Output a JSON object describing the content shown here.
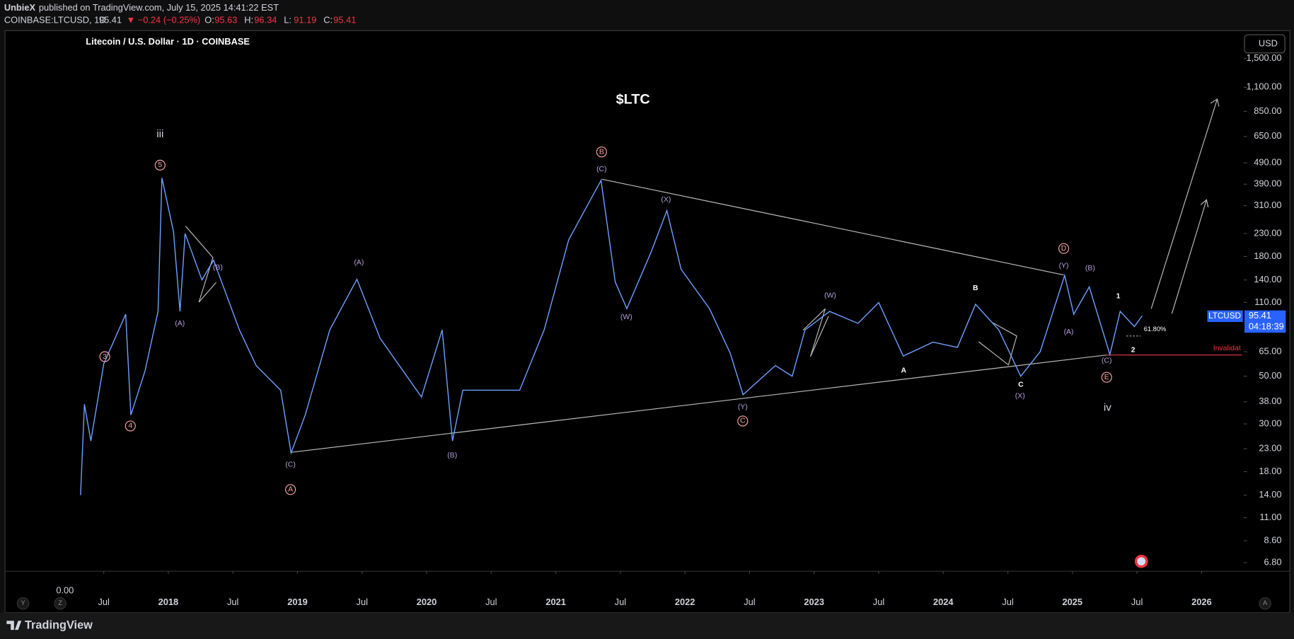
{
  "header": {
    "author": "UnbieX",
    "published": "published on TradingView.com, July 15, 2025 14:41:22 EST",
    "symbol": "COINBASE:LTCUSD, 1D",
    "last": "95.41",
    "change": "▼ −0.24 (−0.25%)",
    "ohlc": [
      {
        "label": "O:",
        "value": "95.63"
      },
      {
        "label": "H:",
        "value": "96.34"
      },
      {
        "label": "L:",
        "value": "91.19"
      },
      {
        "label": "C:",
        "value": "95.41"
      }
    ]
  },
  "chart_data": {
    "type": "line",
    "title": "Litecoin / U.S. Dollar · 1D · COINBASE",
    "annotation": "$LTC",
    "color": "#6ea0ff",
    "log_scale": true,
    "grid": false,
    "x": [
      2017.32,
      2017.35,
      2017.4,
      2017.5,
      2017.67,
      2017.71,
      2017.82,
      2017.92,
      2017.95,
      2018.04,
      2018.09,
      2018.13,
      2018.26,
      2018.35,
      2018.55,
      2018.68,
      2018.87,
      2018.95,
      2019.06,
      2019.25,
      2019.46,
      2019.64,
      2019.96,
      2020.12,
      2020.2,
      2020.28,
      2020.53,
      2020.72,
      2020.91,
      2021.1,
      2021.35,
      2021.46,
      2021.55,
      2021.74,
      2021.86,
      2021.97,
      2022.19,
      2022.35,
      2022.45,
      2022.7,
      2022.83,
      2022.93,
      2023.12,
      2023.34,
      2023.5,
      2023.69,
      2023.92,
      2024.11,
      2024.25,
      2024.43,
      2024.6,
      2024.75,
      2024.94,
      2025.01,
      2025.13,
      2025.29,
      2025.37,
      2025.48,
      2025.54
    ],
    "values": [
      14,
      37,
      25,
      57,
      97,
      33,
      53,
      100,
      417,
      235,
      100,
      230,
      140,
      173,
      82,
      56,
      43,
      22,
      33,
      82,
      141,
      75,
      40,
      82,
      25,
      43,
      43,
      43,
      82,
      215,
      406,
      137,
      103,
      190,
      294,
      157,
      103,
      64,
      41,
      56,
      50,
      82,
      100,
      88,
      110,
      62,
      72,
      68,
      108,
      82,
      50,
      65,
      147,
      97,
      130,
      63,
      100,
      85,
      95.41
    ],
    "xlim": [
      2016.735,
      2026.313
    ],
    "xticks": [
      {
        "value": 2017.5,
        "label": "Jul"
      },
      2018,
      {
        "value": 2018.5,
        "label": "Jul"
      },
      2019,
      {
        "value": 2019.5,
        "label": "Jul"
      },
      2020,
      {
        "value": 2020.5,
        "label": "Jul"
      },
      2021,
      {
        "value": 2021.5,
        "label": "Jul"
      },
      2022,
      {
        "value": 2022.5,
        "label": "Jul"
      },
      2023,
      {
        "value": 2023.5,
        "label": "Jul"
      },
      2024,
      {
        "value": 2024.5,
        "label": "Jul"
      },
      2025,
      {
        "value": 2025.5,
        "label": "Jul"
      },
      2026
    ],
    "ylim": [
      6.2,
      2000
    ],
    "yticks": [
      {
        "value": 1500,
        "label": "1,500.00"
      },
      {
        "value": 1100,
        "label": "1,100.00"
      },
      {
        "value": 850,
        "label": "850.00"
      },
      {
        "value": 650,
        "label": "650.00"
      },
      {
        "value": 490,
        "label": "490.00"
      },
      {
        "value": 390,
        "label": "390.00"
      },
      {
        "value": 310,
        "label": "310.00"
      },
      {
        "value": 230,
        "label": "230.00"
      },
      {
        "value": 180,
        "label": "180.00"
      },
      {
        "value": 140,
        "label": "140.00"
      },
      {
        "value": 110,
        "label": "110.00"
      },
      {
        "value": 65,
        "label": "65.00"
      },
      {
        "value": 50,
        "label": "50.00"
      },
      {
        "value": 38,
        "label": "38.00"
      },
      {
        "value": 30,
        "label": "30.00"
      },
      {
        "value": 23,
        "label": "23.00"
      },
      {
        "value": 18,
        "label": "18.00"
      },
      {
        "value": 14,
        "label": "14.00"
      },
      {
        "value": 11,
        "label": "11.00"
      },
      {
        "value": 8.6,
        "label": "8.60"
      },
      {
        "value": 6.8,
        "label": "6.80"
      }
    ],
    "wave_labels": [
      "iii",
      "5",
      "3",
      "4",
      "(A)",
      "(B)",
      "(A)",
      "(C)",
      "A",
      "(B)",
      "B",
      "(C)",
      "(X)",
      "(W)",
      "(Y)",
      "C",
      "(W)",
      "A",
      "B",
      "C",
      "(X)",
      "D",
      "(Y)",
      "(B)",
      "(A)",
      "(C)",
      "E",
      "iv",
      "1",
      "2"
    ],
    "fib_label": "61.80%",
    "invalidation_label": "Invalidat"
  },
  "price_axis": {
    "currency": "USD",
    "symbol": "LTCUSD",
    "last_price": "95.41",
    "countdown": "04:18:39"
  },
  "volume_scale_label": "0.00",
  "buttons": [
    "Y",
    "Z",
    "A"
  ],
  "footer": {
    "brand": "TradingView"
  }
}
